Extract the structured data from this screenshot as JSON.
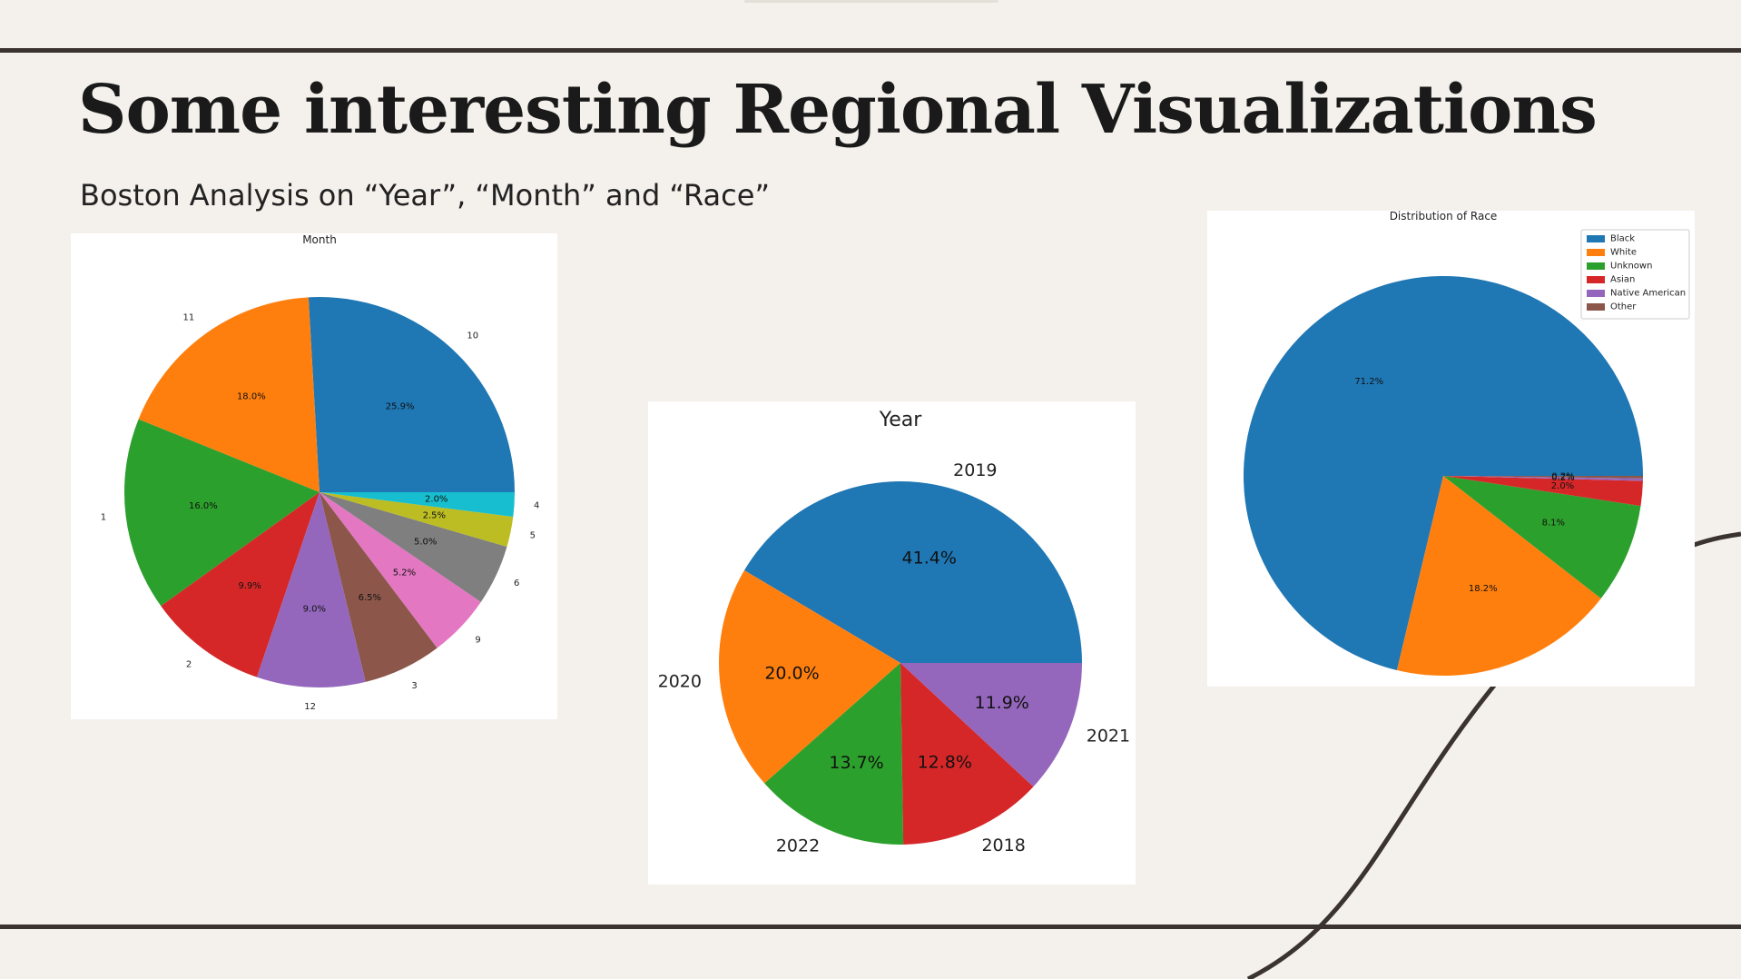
{
  "slide": {
    "title": "Some interesting Regional Visualizations",
    "subtitle": "Boston Analysis on “Year”, “Month” and “Race”"
  },
  "chart_data": [
    {
      "type": "pie",
      "title": "Month",
      "categories": [
        "10",
        "11",
        "1",
        "2",
        "12",
        "3",
        "9",
        "6",
        "5",
        "4"
      ],
      "values": [
        25.9,
        18.0,
        16.0,
        9.9,
        9.0,
        6.5,
        5.2,
        5.0,
        2.5,
        2.0
      ],
      "labels": [
        "25.9%",
        "18.0%",
        "16.0%",
        "9.9%",
        "9.0%",
        "6.5%",
        "5.2%",
        "5.0%",
        "2.5%",
        "2.0%"
      ],
      "colors": [
        "#1f77b4",
        "#ff7f0e",
        "#2ca02c",
        "#d62728",
        "#9467bd",
        "#8c564b",
        "#e377c2",
        "#7f7f7f",
        "#bcbd22",
        "#17becf"
      ],
      "legend": false
    },
    {
      "type": "pie",
      "title": "Year",
      "categories": [
        "2019",
        "2020",
        "2022",
        "2018",
        "2021"
      ],
      "values": [
        41.4,
        20.0,
        13.7,
        12.8,
        11.9
      ],
      "labels": [
        "41.4%",
        "20.0%",
        "13.7%",
        "12.8%",
        "11.9%"
      ],
      "colors": [
        "#1f77b4",
        "#ff7f0e",
        "#2ca02c",
        "#d62728",
        "#9467bd"
      ],
      "legend": false
    },
    {
      "type": "pie",
      "title": "Distribution of Race",
      "categories": [
        "Black",
        "White",
        "Unknown",
        "Asian",
        "Native American",
        "Other"
      ],
      "values": [
        71.2,
        18.2,
        8.1,
        2.0,
        0.2,
        0.2
      ],
      "labels": [
        "71.2%",
        "18.2%",
        "8.1%",
        "2.0%",
        "0.2%",
        "0.2%"
      ],
      "colors": [
        "#1f77b4",
        "#ff7f0e",
        "#2ca02c",
        "#d62728",
        "#9467bd",
        "#8c564b"
      ],
      "legend": true,
      "legend_position": "top-right"
    }
  ]
}
